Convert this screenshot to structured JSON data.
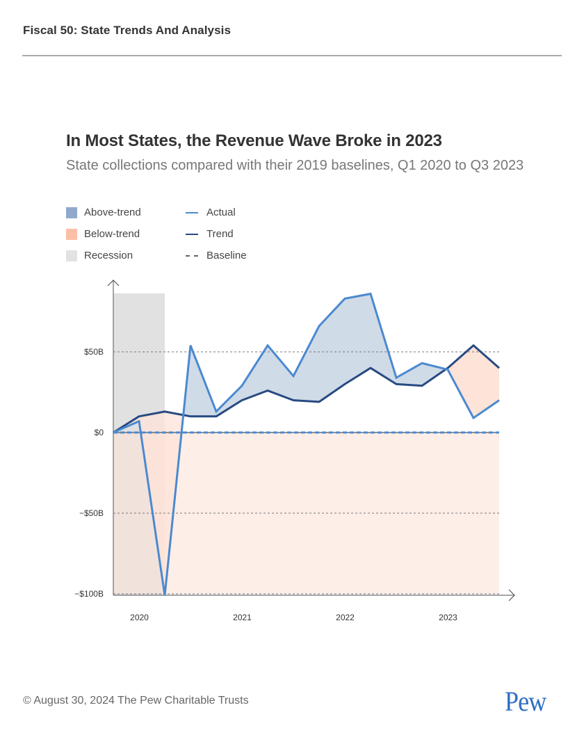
{
  "header": {
    "title": "Fiscal 50: State Trends And Analysis"
  },
  "footer": {
    "copyright": "© August 30, 2024 The Pew Charitable Trusts",
    "logo": "Pew"
  },
  "colors": {
    "above_trend": "#d0dbe8",
    "below_trend": "#fde3d8",
    "below_trend_legend": "#fbbfa6",
    "above_trend_legend": "#90a8cc",
    "recession": "#dedede",
    "actual": "#4a89d0",
    "trend": "#274a82",
    "baseline": "#555555"
  },
  "legend": {
    "items": [
      {
        "label": "Above-trend",
        "kind": "swatch",
        "color": "#90a8cc"
      },
      {
        "label": "Below-trend",
        "kind": "swatch",
        "color": "#fbbfa6"
      },
      {
        "label": "Recession",
        "kind": "swatch",
        "color": "#e2e2e2"
      },
      {
        "label": "Actual",
        "kind": "line",
        "color": "#4a89d0"
      },
      {
        "label": "Trend",
        "kind": "line",
        "color": "#274a82"
      },
      {
        "label": "Baseline",
        "kind": "dash",
        "color": "#666666"
      }
    ]
  },
  "chart_data": {
    "type": "line",
    "title": "In Most States, the Revenue Wave Broke in 2023",
    "subtitle": "State collections compared with their 2019 baselines, Q1 2020 to Q3 2023",
    "xlabel": "",
    "ylabel": "",
    "x": [
      "Q1 2020",
      "Q2 2020",
      "Q3 2020",
      "Q4 2020",
      "Q1 2021",
      "Q2 2021",
      "Q3 2021",
      "Q4 2021",
      "Q1 2022",
      "Q2 2022",
      "Q3 2022",
      "Q4 2022",
      "Q1 2023",
      "Q2 2023",
      "Q3 2023",
      "Q4 2023"
    ],
    "x_tick_labels": [
      "2020",
      "2021",
      "2022",
      "2023"
    ],
    "y_tick_labels": [
      "$50B",
      "$0",
      "−$50B",
      "−$100B"
    ],
    "y_ticks": [
      50,
      0,
      -50,
      -100
    ],
    "ylim": [
      -100,
      88
    ],
    "unit": "billions USD",
    "series": [
      {
        "name": "Actual",
        "values": [
          0,
          7,
          -101,
          54,
          13,
          29,
          54,
          35,
          66,
          83,
          86,
          34,
          43,
          39,
          9,
          20
        ]
      },
      {
        "name": "Trend",
        "values": [
          0,
          10,
          13,
          10,
          10,
          20,
          26,
          20,
          19,
          30,
          40,
          30,
          29,
          40,
          54,
          40
        ]
      },
      {
        "name": "Baseline",
        "values": [
          0,
          0,
          0,
          0,
          0,
          0,
          0,
          0,
          0,
          0,
          0,
          0,
          0,
          0,
          0,
          0
        ]
      }
    ],
    "recession": {
      "start": "Q1 2020",
      "end": "Q3 2020"
    },
    "grid": "horizontal dotted",
    "legend_position": "top-left"
  }
}
